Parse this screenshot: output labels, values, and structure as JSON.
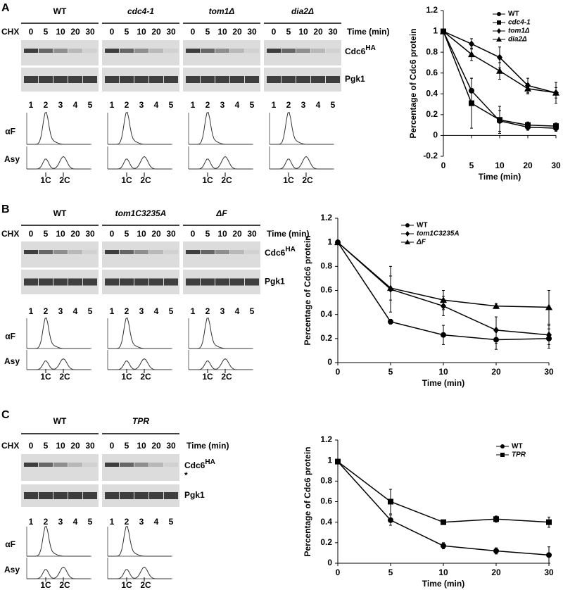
{
  "blot_labels": {
    "chx": "CHX",
    "time_unit": "Time (min)",
    "protein": "Cdc6",
    "superscript": "HA",
    "loading": "Pgk1",
    "lanes": [
      "0",
      "5",
      "10",
      "20",
      "30"
    ],
    "fractions": [
      "1",
      "2",
      "3",
      "4",
      "5"
    ],
    "facs_rows": [
      "αF",
      "Asy"
    ],
    "dna": [
      "1C",
      "2C"
    ],
    "star": "*"
  },
  "panels": [
    {
      "label": "A",
      "strains": [
        "WT",
        "cdc4-1",
        "tom1Δ",
        "dia2Δ"
      ]
    },
    {
      "label": "B",
      "strains": [
        "WT",
        "tom1C3235A",
        "ΔF"
      ]
    },
    {
      "label": "C",
      "strains": [
        "WT",
        "TPR"
      ]
    }
  ],
  "chart_data": [
    {
      "type": "line",
      "x_label": "Time (min)",
      "y_label": "Percentage of Cdc6 protein",
      "categories": [
        "0",
        "5",
        "10",
        "20",
        "30"
      ],
      "ylim": [
        -0.2,
        1.2
      ],
      "yticks": [
        -0.2,
        0,
        0.2,
        0.4,
        0.6,
        0.8,
        1,
        1.2
      ],
      "legend": "upper right",
      "series": [
        {
          "name": "WT",
          "color": "#000000",
          "marker": "circle",
          "italic": false,
          "values": [
            1,
            0.43,
            0.14,
            0.08,
            0.07
          ],
          "errors": [
            0,
            0.12,
            0.1,
            0.03,
            0.03
          ]
        },
        {
          "name": "cdc4-1",
          "color": "#000000",
          "marker": "square",
          "italic": true,
          "values": [
            1,
            0.31,
            0.15,
            0.1,
            0.09
          ],
          "errors": [
            0,
            0.24,
            0.13,
            0.03,
            0.03
          ]
        },
        {
          "name": "tom1Δ",
          "color": "#000000",
          "marker": "diamond",
          "italic": true,
          "values": [
            1,
            0.88,
            0.75,
            0.48,
            0.41
          ],
          "errors": [
            0,
            0.05,
            0.1,
            0.07,
            0.1
          ]
        },
        {
          "name": "dia2Δ",
          "color": "#000000",
          "marker": "triangle",
          "italic": true,
          "values": [
            1,
            0.78,
            0.62,
            0.45,
            0.41
          ],
          "errors": [
            0,
            0.06,
            0.08,
            0.05,
            0.05
          ]
        }
      ]
    },
    {
      "type": "line",
      "x_label": "Time (min)",
      "y_label": "Percentage of Cdc6 protein",
      "categories": [
        "0",
        "5",
        "10",
        "20",
        "30"
      ],
      "ylim": [
        0,
        1.2
      ],
      "yticks": [
        0,
        0.2,
        0.4,
        0.6,
        0.8,
        1,
        1.2
      ],
      "legend": "upper center",
      "series": [
        {
          "name": "WT",
          "color": "#000000",
          "marker": "circle",
          "italic": false,
          "values": [
            1,
            0.34,
            0.23,
            0.19,
            0.2
          ],
          "errors": [
            0,
            0.02,
            0.08,
            0.08,
            0.08
          ]
        },
        {
          "name": "tom1C3235A",
          "color": "#000000",
          "marker": "diamond",
          "italic": true,
          "values": [
            1,
            0.61,
            0.47,
            0.27,
            0.23
          ],
          "errors": [
            0,
            0.19,
            0.08,
            0.11,
            0.08
          ]
        },
        {
          "name": "ΔF",
          "color": "#000000",
          "marker": "triangle",
          "italic": true,
          "values": [
            1,
            0.62,
            0.52,
            0.47,
            0.46
          ],
          "errors": [
            0,
            0.1,
            0.08,
            0.02,
            0.14
          ]
        }
      ]
    },
    {
      "type": "line",
      "x_label": "Time (min)",
      "y_label": "Percentage of Cdc6 protein",
      "categories": [
        "0",
        "5",
        "10",
        "20",
        "30"
      ],
      "ylim": [
        0,
        1.2
      ],
      "yticks": [
        0,
        0.2,
        0.4,
        0.6,
        0.8,
        1,
        1.2
      ],
      "legend": "upper right",
      "series": [
        {
          "name": "WT",
          "color": "#000000",
          "marker": "circle",
          "italic": false,
          "values": [
            0.99,
            0.42,
            0.17,
            0.12,
            0.08
          ],
          "errors": [
            0,
            0.05,
            0.03,
            0.03,
            0.08
          ]
        },
        {
          "name": "TPR",
          "color": "#000000",
          "marker": "square",
          "italic": true,
          "values": [
            0.99,
            0.6,
            0.4,
            0.43,
            0.4
          ],
          "errors": [
            0,
            0.12,
            0,
            0.03,
            0.05
          ]
        }
      ]
    }
  ]
}
